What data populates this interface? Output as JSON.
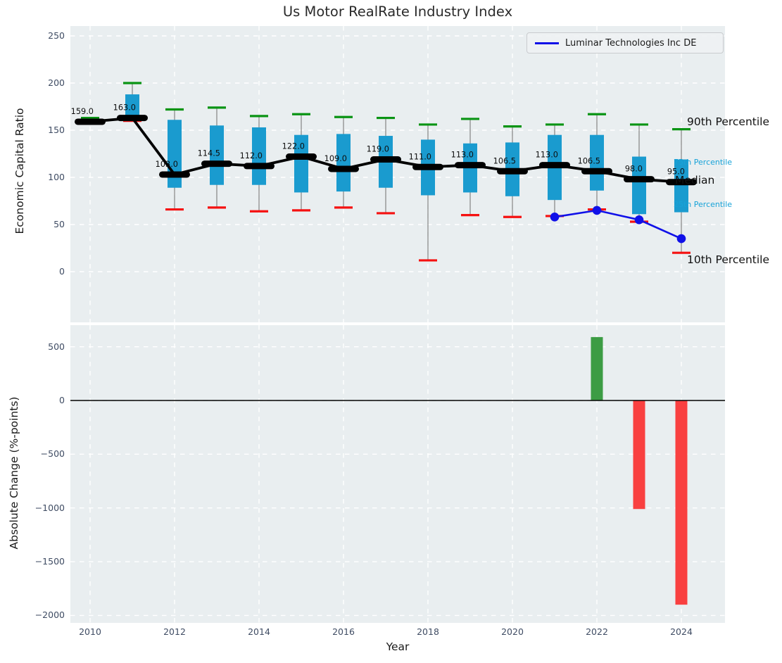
{
  "title": "Us Motor RealRate Industry Index",
  "top_axis": {
    "ylabel": "Economic Capital Ratio",
    "ytick_labels": [
      "0",
      "50",
      "100",
      "150",
      "200",
      "250"
    ],
    "ytick_values": [
      0,
      50,
      100,
      150,
      200,
      250
    ]
  },
  "bottom_axis": {
    "ylabel": "Absolute Change (%-points)",
    "xlabel": "Year",
    "ytick_labels": [
      "500",
      "0",
      "−500",
      "−1000",
      "−1500",
      "−2000"
    ],
    "ytick_values": [
      500,
      0,
      -500,
      -1000,
      -1500,
      -2000
    ],
    "xtick_labels": [
      "2010",
      "2012",
      "2014",
      "2016",
      "2018",
      "2020",
      "2022",
      "2024"
    ],
    "xtick_values": [
      2010,
      2012,
      2014,
      2016,
      2018,
      2020,
      2022,
      2024
    ]
  },
  "legend": {
    "items": [
      {
        "label": "Luminar Technologies Inc DE",
        "color": "#1010e8"
      }
    ],
    "position": "upper right"
  },
  "annotations": {
    "p90": "90th Percentile",
    "p75": "75th Percentile",
    "median": "Median",
    "p25": "25th Percentile",
    "p10": "10th Percentile"
  },
  "colors": {
    "box_fill": "#1a9bcf",
    "cap_high": "#0a9414",
    "cap_low": "#f51111",
    "whisker": "#8c8c8c",
    "median_line": "#000000",
    "company_line": "#1010e8",
    "bar_positive": "#3c9c44",
    "bar_negative": "#f94040",
    "plot_background": "#e9eef0",
    "grid": "#ffffff",
    "tick_text": "#3f4c63",
    "percentile_text": "#18a3d8",
    "zero_line": "#000000"
  },
  "chart_data": [
    {
      "type": "boxplot-with-median-line",
      "title": "Us Motor RealRate Industry Index",
      "xlabel": "Year",
      "ylabel": "Economic Capital Ratio",
      "xlim": [
        2009.5,
        2025.05
      ],
      "ylim": [
        -53,
        256
      ],
      "grid": "white dashed",
      "years": [
        2010,
        2011,
        2012,
        2013,
        2014,
        2015,
        2016,
        2017,
        2018,
        2019,
        2020,
        2021,
        2022,
        2023,
        2024
      ],
      "p90": [
        163,
        200,
        172,
        174,
        165,
        167,
        164,
        163,
        156,
        162,
        154,
        156,
        167,
        156,
        151
      ],
      "q75": [
        160,
        188,
        161,
        155,
        153,
        145,
        146,
        144,
        140,
        136,
        137,
        145,
        145,
        122,
        119
      ],
      "median": [
        159,
        163,
        103,
        114.5,
        112,
        122,
        109,
        119,
        111,
        113,
        106.5,
        113,
        106.5,
        98,
        95
      ],
      "q25": [
        158,
        161,
        89,
        92,
        92,
        84,
        85,
        89,
        81,
        84,
        80,
        76,
        86,
        61,
        63
      ],
      "p10": [
        157,
        160,
        66,
        68,
        64,
        65,
        68,
        62,
        12,
        60,
        58,
        59,
        66,
        53,
        20
      ],
      "median_labels": [
        "159.0",
        "163.0",
        "103.0",
        "114.5",
        "112.0",
        "122.0",
        "109.0",
        "119.0",
        "111.0",
        "113.0",
        "106.5",
        "113.0",
        "106.5",
        "98.0",
        "95.0"
      ],
      "series": [
        {
          "name": "Luminar Technologies Inc DE",
          "type": "line",
          "x": [
            2021,
            2022,
            2023,
            2024
          ],
          "y": [
            58,
            65,
            55,
            35
          ]
        }
      ]
    },
    {
      "type": "bar",
      "xlabel": "Year",
      "ylabel": "Absolute Change (%-points)",
      "xlim": [
        2009.5,
        2025.05
      ],
      "ylim": [
        -2061,
        700
      ],
      "grid": "white dashed",
      "x": [
        2022,
        2023,
        2024
      ],
      "values": [
        590,
        -1010,
        -1900
      ]
    }
  ]
}
